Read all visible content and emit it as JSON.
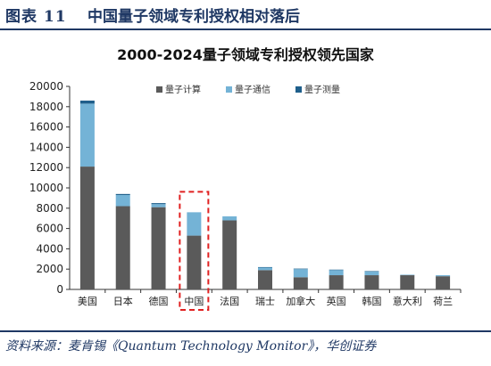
{
  "figure": {
    "number": "图表 11",
    "title": "中国量子领域专利授权相对落后",
    "source": "资料来源：麦肯锡《Quantum Technology Monitor》，华创证券"
  },
  "chart_data": {
    "type": "bar",
    "stacked": true,
    "title": "2000-2024量子领域专利授权领先国家",
    "categories": [
      "美国",
      "日本",
      "德国",
      "中国",
      "法国",
      "瑞士",
      "加拿大",
      "英国",
      "韩国",
      "意大利",
      "荷兰"
    ],
    "series": [
      {
        "name": "量子计算",
        "color": "#5a5a5a",
        "values": [
          12100,
          8200,
          8100,
          5300,
          6800,
          1900,
          1200,
          1400,
          1400,
          1400,
          1300
        ]
      },
      {
        "name": "量子通信",
        "color": "#74b3d6",
        "values": [
          6200,
          1100,
          300,
          2300,
          400,
          250,
          800,
          500,
          350,
          50,
          100
        ]
      },
      {
        "name": "量子测量",
        "color": "#1f5f8b",
        "values": [
          300,
          100,
          100,
          0,
          0,
          50,
          50,
          50,
          50,
          0,
          0
        ]
      }
    ],
    "ylim": [
      0,
      20000
    ],
    "yticks": [
      0,
      2000,
      4000,
      6000,
      8000,
      10000,
      12000,
      14000,
      16000,
      18000,
      20000
    ],
    "legend_position": "top",
    "grid": false,
    "highlight_category": "中国",
    "highlight_style": "red dashed box"
  }
}
